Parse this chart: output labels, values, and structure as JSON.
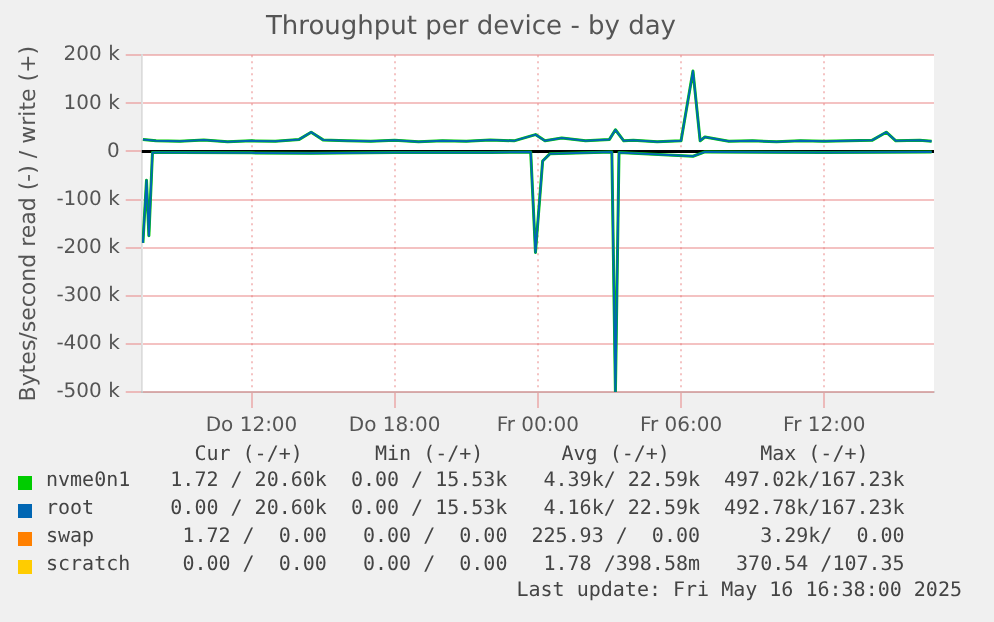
{
  "chart_data": {
    "type": "line",
    "title": "Throughput per device - by day",
    "ylabel": "Bytes/second read (-) / write (+)",
    "xlim": [
      "2025-05-15T07:24",
      "2025-05-16T16:36"
    ],
    "xticks": [
      {
        "value": "2025-05-15T12:00",
        "label": "Do 12:00"
      },
      {
        "value": "2025-05-15T18:00",
        "label": "Do 18:00"
      },
      {
        "value": "2025-05-16T00:00",
        "label": "Fr 00:00"
      },
      {
        "value": "2025-05-16T06:00",
        "label": "Fr 06:00"
      },
      {
        "value": "2025-05-16T12:00",
        "label": "Fr 12:00"
      }
    ],
    "ylim": [
      -500000,
      200000
    ],
    "yticks": [
      {
        "value": -500000,
        "label": "-500 k"
      },
      {
        "value": -400000,
        "label": "-400 k"
      },
      {
        "value": -300000,
        "label": "-300 k"
      },
      {
        "value": -200000,
        "label": "-200 k"
      },
      {
        "value": -100000,
        "label": "-100 k"
      },
      {
        "value": 0,
        "label": "0"
      },
      {
        "value": 100000,
        "label": "100 k"
      },
      {
        "value": 200000,
        "label": "200 k"
      }
    ],
    "grid": true,
    "legend": "bottom",
    "marker": "none",
    "line_style": "solid",
    "ref_lines": [
      {
        "axis": "y",
        "value": 0,
        "color": "#000000"
      }
    ],
    "series": [
      {
        "name": "nvme0n1",
        "color": "#00cc00",
        "x": [
          "2025-05-15T07:27",
          "2025-05-15T08:00",
          "2025-05-15T09:00",
          "2025-05-15T10:00",
          "2025-05-15T11:00",
          "2025-05-15T12:00",
          "2025-05-15T13:00",
          "2025-05-15T14:00",
          "2025-05-15T14:30",
          "2025-05-15T15:00",
          "2025-05-15T16:00",
          "2025-05-15T17:00",
          "2025-05-15T18:00",
          "2025-05-15T19:00",
          "2025-05-15T20:00",
          "2025-05-15T21:00",
          "2025-05-15T22:00",
          "2025-05-15T23:00",
          "2025-05-15T23:54",
          "2025-05-16T00:18",
          "2025-05-16T01:00",
          "2025-05-16T02:00",
          "2025-05-16T03:00",
          "2025-05-16T03:15",
          "2025-05-16T03:36",
          "2025-05-16T04:00",
          "2025-05-16T05:00",
          "2025-05-16T06:00",
          "2025-05-16T06:30",
          "2025-05-16T06:48",
          "2025-05-16T07:00",
          "2025-05-16T08:00",
          "2025-05-16T09:00",
          "2025-05-16T10:00",
          "2025-05-16T11:00",
          "2025-05-16T12:00",
          "2025-05-16T13:00",
          "2025-05-16T14:00",
          "2025-05-16T14:36",
          "2025-05-16T15:00",
          "2025-05-16T16:00",
          "2025-05-16T16:30"
        ],
        "values": [
          25000,
          22000,
          21000,
          24000,
          20000,
          22000,
          21000,
          25000,
          40000,
          24000,
          22000,
          21000,
          23000,
          20000,
          22000,
          21000,
          24000,
          22000,
          35000,
          22000,
          28000,
          22000,
          25000,
          45000,
          22000,
          23000,
          20000,
          22000,
          167000,
          22000,
          30000,
          21000,
          22000,
          20000,
          22000,
          21000,
          22000,
          23000,
          40000,
          22000,
          23000,
          21000
        ]
      },
      {
        "color": "#00cc00",
        "x": [
          "2025-05-15T07:27",
          "2025-05-15T07:36",
          "2025-05-15T07:42",
          "2025-05-15T07:51",
          "2025-05-15T09:00",
          "2025-05-15T12:00",
          "2025-05-15T14:30",
          "2025-05-15T18:00",
          "2025-05-15T22:00",
          "2025-05-15T23:42",
          "2025-05-15T23:54",
          "2025-05-16T00:12",
          "2025-05-16T00:30",
          "2025-05-16T03:06",
          "2025-05-16T03:15",
          "2025-05-16T03:24",
          "2025-05-16T06:30",
          "2025-05-16T07:00",
          "2025-05-16T12:00",
          "2025-05-16T16:30"
        ],
        "values": [
          -190000,
          -60000,
          -175000,
          -2000,
          -2000,
          -3000,
          -4000,
          -2000,
          -2000,
          -1000,
          -210000,
          -20000,
          -5000,
          -1000,
          -500000,
          -2000,
          -10000,
          -1000,
          -2000,
          -1000
        ]
      },
      {
        "name": "root",
        "color": "#0066b3",
        "x": [
          "2025-05-15T07:27",
          "2025-05-15T08:00",
          "2025-05-15T09:00",
          "2025-05-15T10:00",
          "2025-05-15T11:00",
          "2025-05-15T12:00",
          "2025-05-15T13:00",
          "2025-05-15T14:00",
          "2025-05-15T14:30",
          "2025-05-15T15:00",
          "2025-05-15T16:00",
          "2025-05-15T17:00",
          "2025-05-15T18:00",
          "2025-05-15T19:00",
          "2025-05-15T20:00",
          "2025-05-15T21:00",
          "2025-05-15T22:00",
          "2025-05-15T23:00",
          "2025-05-15T23:54",
          "2025-05-16T00:18",
          "2025-05-16T01:00",
          "2025-05-16T02:00",
          "2025-05-16T03:00",
          "2025-05-16T03:15",
          "2025-05-16T03:36",
          "2025-05-16T04:00",
          "2025-05-16T05:00",
          "2025-05-16T06:00",
          "2025-05-16T06:30",
          "2025-05-16T06:48",
          "2025-05-16T07:00",
          "2025-05-16T08:00",
          "2025-05-16T09:00",
          "2025-05-16T10:00",
          "2025-05-16T11:00",
          "2025-05-16T12:00",
          "2025-05-16T13:00",
          "2025-05-16T14:00",
          "2025-05-16T14:36",
          "2025-05-16T15:00",
          "2025-05-16T16:00",
          "2025-05-16T16:30"
        ],
        "values": [
          25000,
          22000,
          21000,
          24000,
          20000,
          22000,
          21000,
          25000,
          40000,
          24000,
          22000,
          21000,
          23000,
          20000,
          22000,
          21000,
          24000,
          22000,
          35000,
          22000,
          28000,
          22000,
          25000,
          45000,
          22000,
          23000,
          20000,
          22000,
          167000,
          22000,
          30000,
          21000,
          22000,
          20000,
          22000,
          21000,
          22000,
          23000,
          40000,
          22000,
          23000,
          21000
        ]
      },
      {
        "color": "#0066b3",
        "x": [
          "2025-05-15T07:27",
          "2025-05-15T07:36",
          "2025-05-15T07:42",
          "2025-05-15T07:51",
          "2025-05-15T09:00",
          "2025-05-15T12:00",
          "2025-05-15T14:30",
          "2025-05-15T18:00",
          "2025-05-15T22:00",
          "2025-05-15T23:42",
          "2025-05-15T23:54",
          "2025-05-16T00:12",
          "2025-05-16T00:30",
          "2025-05-16T03:06",
          "2025-05-16T03:15",
          "2025-05-16T03:24",
          "2025-05-16T06:30",
          "2025-05-16T07:00",
          "2025-05-16T12:00",
          "2025-05-16T16:30"
        ],
        "values": [
          -190000,
          -60000,
          -175000,
          -2000,
          -2000,
          -3000,
          -4000,
          -2000,
          -2000,
          -1000,
          -210000,
          -20000,
          -5000,
          -1000,
          -500000,
          -2000,
          -10000,
          -1000,
          -2000,
          -1000
        ]
      },
      {
        "name": "swap",
        "color": "#ff8000"
      },
      {
        "name": "scratch",
        "color": "#ffcc00"
      }
    ],
    "annotations": [
      "Cur (-/+)",
      "Min (-/+)",
      "Avg (-/+)",
      "Max (-/+)",
      "1.72 / 20.60k",
      "0.00 / 15.53k",
      "4.39k/ 22.59k",
      "497.02k/167.23k",
      "0.00 / 20.60k",
      "0.00 / 15.53k",
      "4.16k/ 22.59k",
      "492.78k/167.23k",
      "1.72 /  0.00",
      "0.00 /  0.00",
      "225.93 /  0.00",
      "3.29k/  0.00",
      "0.00 /  0.00",
      "0.00 /  0.00",
      "1.78 /398.58m",
      "370.54 /107.35",
      "Last update: Fri May 16 16:38:00 2025"
    ]
  }
}
